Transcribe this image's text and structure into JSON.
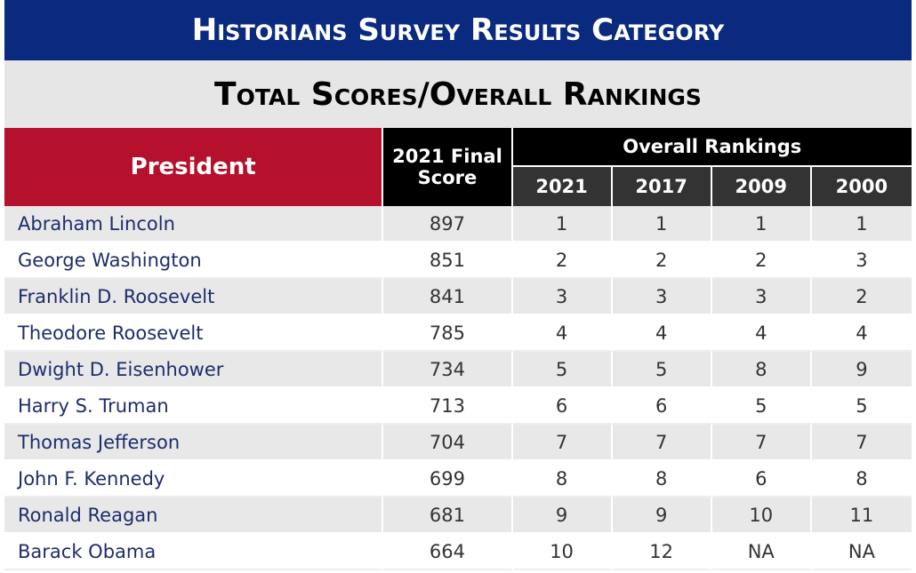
{
  "title": "Historians Survey Results Category",
  "subtitle": "Total Scores/Overall Rankings",
  "table": {
    "president_header": "President",
    "score_header_line1": "2021 Final",
    "score_header_line2": "Score",
    "rankings_header": "Overall Rankings",
    "years": [
      "2021",
      "2017",
      "2009",
      "2000"
    ],
    "rows": [
      {
        "name": "Abraham Lincoln",
        "score": "897",
        "r2021": "1",
        "r2017": "1",
        "r2009": "1",
        "r2000": "1"
      },
      {
        "name": "George Washington",
        "score": "851",
        "r2021": "2",
        "r2017": "2",
        "r2009": "2",
        "r2000": "3"
      },
      {
        "name": "Franklin D. Roosevelt",
        "score": "841",
        "r2021": "3",
        "r2017": "3",
        "r2009": "3",
        "r2000": "2"
      },
      {
        "name": "Theodore Roosevelt",
        "score": "785",
        "r2021": "4",
        "r2017": "4",
        "r2009": "4",
        "r2000": "4"
      },
      {
        "name": "Dwight D. Eisenhower",
        "score": "734",
        "r2021": "5",
        "r2017": "5",
        "r2009": "8",
        "r2000": "9"
      },
      {
        "name": "Harry S. Truman",
        "score": "713",
        "r2021": "6",
        "r2017": "6",
        "r2009": "5",
        "r2000": "5"
      },
      {
        "name": "Thomas Jefferson",
        "score": "704",
        "r2021": "7",
        "r2017": "7",
        "r2009": "7",
        "r2000": "7"
      },
      {
        "name": "John F. Kennedy",
        "score": "699",
        "r2021": "8",
        "r2017": "8",
        "r2009": "6",
        "r2000": "8"
      },
      {
        "name": "Ronald Reagan",
        "score": "681",
        "r2021": "9",
        "r2017": "9",
        "r2009": "10",
        "r2000": "11"
      },
      {
        "name": "Barack Obama",
        "score": "664",
        "r2021": "10",
        "r2017": "12",
        "r2009": "NA",
        "r2000": "NA"
      }
    ]
  },
  "colors": {
    "title_bar": "#0a2a80",
    "president_header": "#b5102c",
    "header_black": "#000000",
    "year_header": "#333333",
    "name_text": "#1d2d6b",
    "row_shade": "#e8e8e8"
  }
}
